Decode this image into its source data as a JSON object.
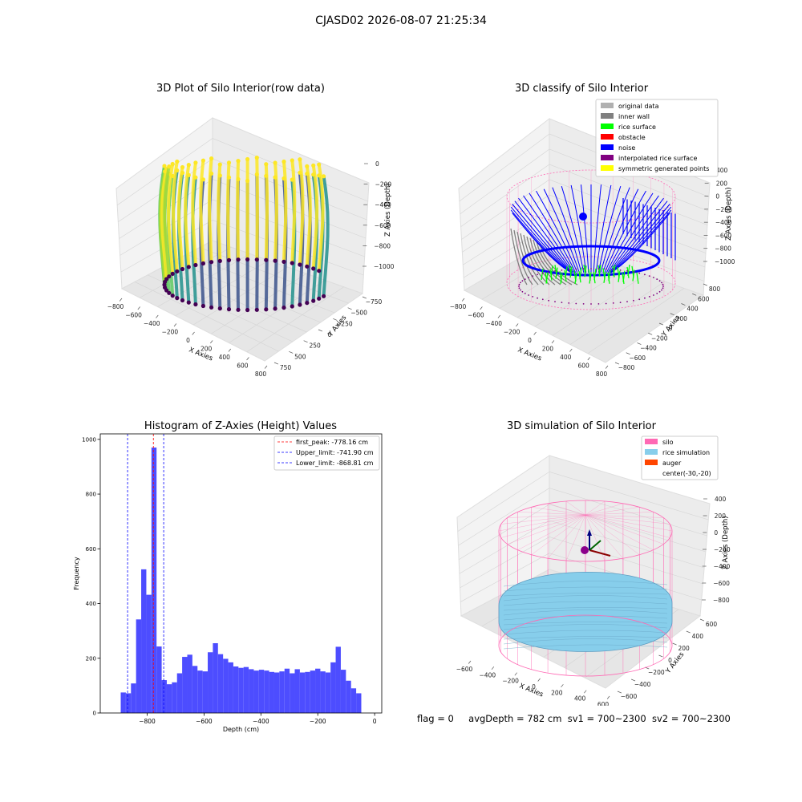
{
  "suptitle": "CJASD02 2026-08-07 21:25:34",
  "status": {
    "flag": "flag = 0",
    "avg_depth": "avgDepth = 782 cm",
    "sv1": "sv1 = 700~2300",
    "sv2": "sv2 = 700~2300"
  },
  "colors": {
    "original": "#b0b0b0",
    "inner_wall": "#808080",
    "rice_surface": "#00ff00",
    "obstacle": "#ff0000",
    "noise": "#0000ff",
    "interp": "#800080",
    "symmetric": "#ffff00",
    "silo": "#ff69b4",
    "rice_sim": "#87ceeb",
    "auger": "#ff4500",
    "hist_bar": "#4d4dff"
  },
  "chart_data": [
    {
      "type": "scatter3d",
      "title": "3D Plot of Silo Interior(row data)",
      "xlabel": "X Axies",
      "ylabel": "Y Axies",
      "zlabel": "Z Axies (Depth)",
      "x_ticks": [
        "−800",
        "−600",
        "−400",
        "−200",
        "0",
        "200",
        "400",
        "600",
        "800"
      ],
      "y_ticks": [
        "−750",
        "−500",
        "−250",
        "0",
        "250",
        "500",
        "750"
      ],
      "z_ticks": [
        "0",
        "−200",
        "−400",
        "−600",
        "−800",
        "−1000"
      ],
      "colormap": "viridis"
    },
    {
      "type": "scatter3d",
      "title": "3D classify of Silo Interior",
      "xlabel": "X Axies",
      "ylabel": "Y Axies",
      "zlabel": "Z Axies (Depth)",
      "x_ticks": [
        "−800",
        "−600",
        "−400",
        "−200",
        "0",
        "200",
        "400",
        "600",
        "800"
      ],
      "y_ticks": [
        "−800",
        "−600",
        "−400",
        "−200",
        "0",
        "200",
        "400",
        "600",
        "800"
      ],
      "z_ticks": [
        "400",
        "200",
        "0",
        "−200",
        "−400",
        "−600",
        "−800",
        "−1000"
      ],
      "legend": [
        "original data",
        "inner wall",
        "rice surface",
        "obstacle",
        "noise",
        "interpolated rice surface",
        "symmetric generated points"
      ],
      "legend_loc": "upper-right"
    },
    {
      "type": "bar",
      "title": "Histogram of Z-Axies (Height) Values",
      "xlabel": "Depth (cm)",
      "ylabel": "Frequency",
      "xlim": [
        -965,
        25
      ],
      "ylim": [
        0,
        1020
      ],
      "x_ticks": [
        -800,
        -600,
        -400,
        -200,
        0
      ],
      "x_tick_labels": [
        "−800",
        "−600",
        "−400",
        "−200",
        "0"
      ],
      "y_ticks": [
        0,
        200,
        400,
        600,
        800,
        1000
      ],
      "y_tick_labels": [
        "0",
        "200",
        "400",
        "600",
        "800",
        "1000"
      ],
      "bin_start": -893,
      "bin_width": 18.0,
      "values": [
        75,
        72,
        108,
        342,
        525,
        432,
        970,
        243,
        120,
        105,
        112,
        145,
        205,
        213,
        172,
        155,
        152,
        222,
        255,
        215,
        198,
        185,
        170,
        165,
        168,
        160,
        155,
        158,
        155,
        150,
        148,
        152,
        162,
        145,
        160,
        148,
        150,
        155,
        162,
        152,
        148,
        185,
        242,
        158,
        118,
        90,
        72
      ],
      "lines": [
        {
          "label": "first_peak: -778.16 cm",
          "x": -778.16,
          "color": "#ff0000"
        },
        {
          "label": "Upper_limit: -741.90 cm",
          "x": -741.9,
          "color": "#0000ff"
        },
        {
          "label": "Lower_limit: -868.81 cm",
          "x": -868.81,
          "color": "#0000ff"
        }
      ],
      "legend_loc": "upper-right"
    },
    {
      "type": "surface3d",
      "title": "3D simulation of Silo Interior",
      "xlabel": "X Axies",
      "ylabel": "Y Axies",
      "zlabel": "Z Axies (Depth)",
      "x_ticks": [
        "−600",
        "−400",
        "−200",
        "0",
        "200",
        "400",
        "600"
      ],
      "y_ticks": [
        "−600",
        "−400",
        "−200",
        "0",
        "200",
        "400",
        "600"
      ],
      "z_ticks": [
        "400",
        "200",
        "0",
        "−200",
        "−400",
        "−600",
        "−800"
      ],
      "legend": [
        "silo",
        "rice simulation",
        "auger",
        "center(-30,-20)"
      ],
      "legend_loc": "upper-right"
    }
  ]
}
